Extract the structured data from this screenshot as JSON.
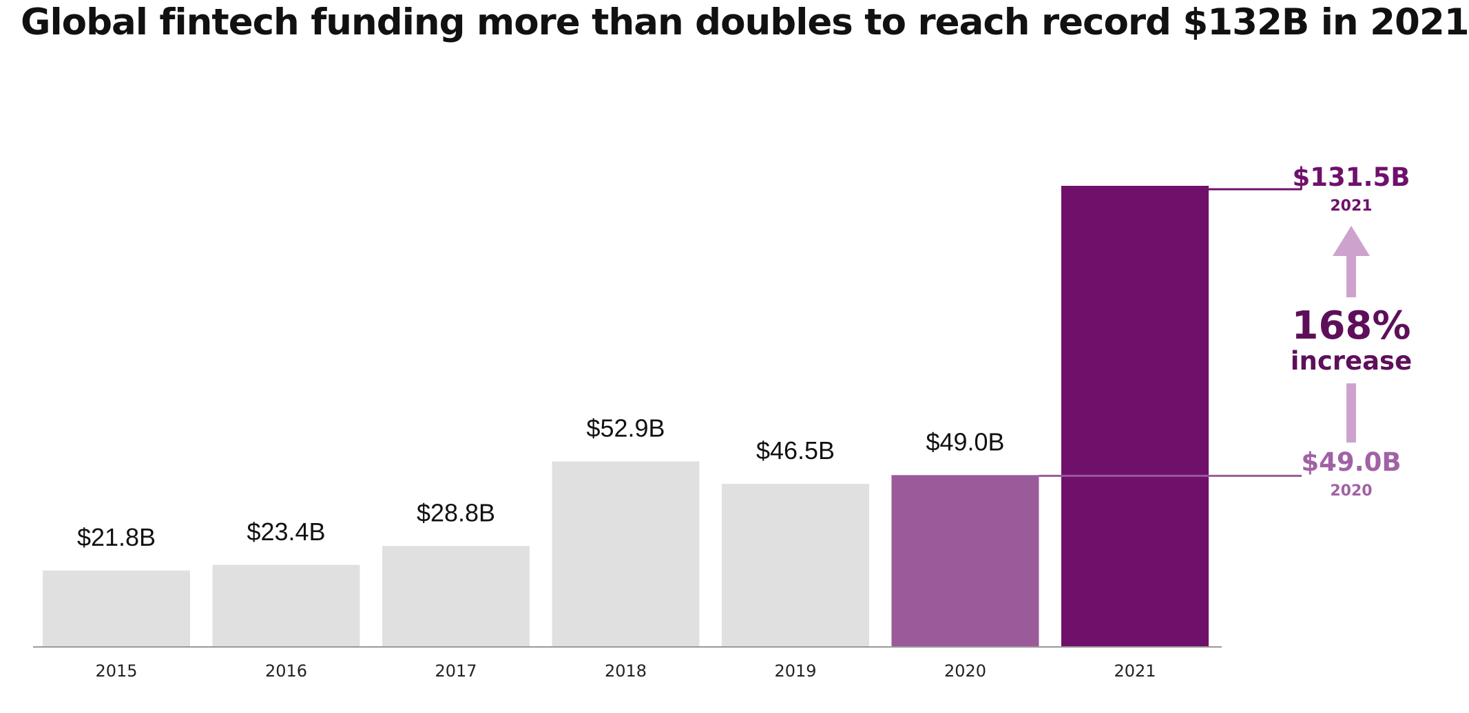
{
  "title": "Global fintech funding more than doubles to reach record $132B in 2021",
  "colors": {
    "bar_default": "#e0e0e0",
    "bar_2020": "#9b5a9a",
    "bar_2021": "#6f116b",
    "axis": "#999999",
    "annotation_2021": "#6f116b",
    "annotation_2020": "#a162a5",
    "arrow": "#cda3ce",
    "increase_text": "#5e0f5a"
  },
  "chart_data": {
    "type": "bar",
    "categories": [
      "2015",
      "2016",
      "2017",
      "2018",
      "2019",
      "2020",
      "2021"
    ],
    "values": [
      21.8,
      23.4,
      28.8,
      52.9,
      46.5,
      49.0,
      131.5
    ],
    "value_labels": [
      "$21.8B",
      "$23.4B",
      "$28.8B",
      "$52.9B",
      "$46.5B",
      "$49.0B",
      ""
    ],
    "title": "Global fintech funding more than doubles to reach record $132B in 2021",
    "xlabel": "",
    "ylabel": "",
    "ylim": [
      0,
      131.5
    ],
    "grid": false,
    "highlight": {
      "2020": "#9b5a9a",
      "2021": "#6f116b"
    },
    "annotations": {
      "top_value": "$131.5B",
      "top_year": "2021",
      "bottom_value": "$49.0B",
      "bottom_year": "2020",
      "increase_pct": "168%",
      "increase_word": "increase"
    }
  }
}
